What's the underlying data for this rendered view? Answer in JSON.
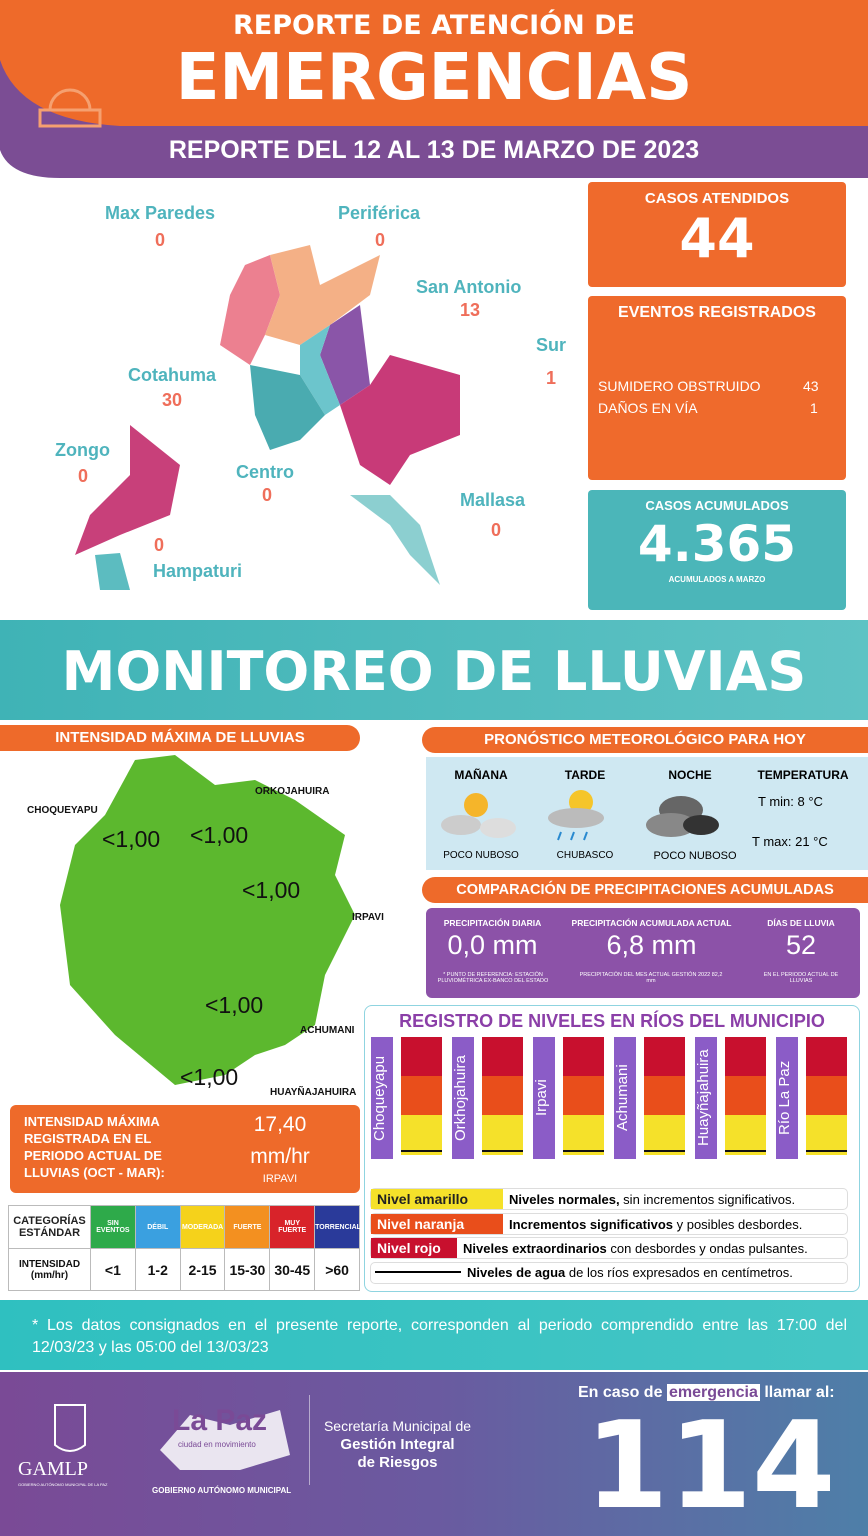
{
  "header": {
    "title_top": "REPORTE DE ATENCIÓN DE",
    "title_main": "EMERGENCIAS",
    "subtitle": "REPORTE DEL 12 AL 13 DE MARZO DE 2023"
  },
  "districts": [
    {
      "name": "Max Paredes",
      "value": "0"
    },
    {
      "name": "Periférica",
      "value": "0"
    },
    {
      "name": "San Antonio",
      "value": "13"
    },
    {
      "name": "Sur",
      "value": "1"
    },
    {
      "name": "Cotahuma",
      "value": "30"
    },
    {
      "name": "Zongo",
      "value": "0"
    },
    {
      "name": "Centro",
      "value": "0"
    },
    {
      "name": "Mallasa",
      "value": "0"
    },
    {
      "name": "Hampaturi",
      "value": "0"
    }
  ],
  "summary": {
    "casos": {
      "label": "CASOS ATENDIDOS",
      "value": "44"
    },
    "eventos": {
      "label": "EVENTOS REGISTRADOS",
      "items": [
        {
          "name": "SUMIDERO OBSTRUIDO",
          "value": "43"
        },
        {
          "name": "DAÑOS EN VÍA",
          "value": "1"
        }
      ]
    },
    "acumulados": {
      "label": "CASOS ACUMULADOS",
      "value": "4.365",
      "note": "ACUMULADOS  A MARZO"
    }
  },
  "monitoreo": {
    "title": "MONITOREO DE LLUVIAS"
  },
  "intensidad": {
    "title": "INTENSIDAD MÁXIMA  DE LLUVIAS",
    "stations": [
      {
        "name": "CHOQUEYAPU",
        "value": "<1,00"
      },
      {
        "name": "ORKOJAHUIRA",
        "value": "<1,00"
      },
      {
        "name": "IRPAVI",
        "value": "<1,00"
      },
      {
        "name": "ACHUMANI",
        "value": "<1,00"
      },
      {
        "name": "HUAYÑAJAHUIRA",
        "value": "<1,00"
      }
    ],
    "max": {
      "label": "INTENSIDAD MÁXIMA REGISTRADA EN EL PERIODO ACTUAL DE LLUVIAS (OCT - MAR):",
      "value": "17,40",
      "unit": "mm/hr",
      "station": "IRPAVI"
    }
  },
  "categorias": {
    "header": [
      "CATEGORÍAS ESTÁNDAR",
      "SIN EVENTOS",
      "DÉBIL",
      "MODERADA",
      "FUERTE",
      "MUY FUERTE",
      "TORRENCIAL"
    ],
    "row": [
      "INTENSIDAD (mm/hr)",
      "<1",
      "1-2",
      "2-15",
      "15-30",
      "30-45",
      ">60"
    ]
  },
  "pronostico": {
    "title": "PRONÓSTICO METEOROLÓGICO PARA HOY",
    "periods": [
      {
        "name": "MAÑANA",
        "desc": "POCO NUBOSO"
      },
      {
        "name": "TARDE",
        "desc": "CHUBASCO"
      },
      {
        "name": "NOCHE",
        "desc": "POCO NUBOSO"
      }
    ],
    "temperatura": {
      "label": "TEMPERATURA",
      "tmin": "T min:  8 °C",
      "tmax": "T max: 21 °C"
    }
  },
  "comparacion": {
    "title": "COMPARACIÓN DE PRECIPITACIONES ACUMULADAS",
    "items": [
      {
        "label": "PRECIPITACIÓN DIARIA",
        "value": "0,0 mm",
        "note": "* PUNTO DE REFERENCIA: ESTACIÓN PLUVIOMÉTRICA EX-BANCO DEL ESTADO"
      },
      {
        "label": "PRECIPITACIÓN ACUMULADA ACTUAL",
        "value": "6,8 mm",
        "note": "PRECIPITACIÓN DEL MES ACTUAL  GESTIÓN 2022 82,2 mm"
      },
      {
        "label": "DÍAS DE LLUVIA",
        "value": "52",
        "note": "EN EL PERIODO ACTUAL DE LLUVIAS"
      }
    ]
  },
  "rios": {
    "title": "REGISTRO DE NIVELES EN RÍOS DEL MUNICIPIO",
    "rivers": [
      "Choqueyapu",
      "Orkhojahuira",
      "Irpavi",
      "Achumani",
      "Huayñajahuira",
      "Río La Paz"
    ],
    "legend": [
      {
        "label": "Nivel amarillo",
        "bold": "Niveles normales,",
        "text": " sin incrementos significativos."
      },
      {
        "label": "Nivel naranja",
        "bold": "Incrementos significativos",
        "text": " y posibles desbordes."
      },
      {
        "label": "Nivel rojo",
        "bold": "Niveles extraordinarios",
        "text": " con desbordes y ondas pulsantes."
      },
      {
        "bold": "Niveles de agua",
        "text": " de los ríos expresados en centímetros."
      }
    ]
  },
  "footnote": "* Los datos consignados en el presente reporte, corresponden al periodo comprendido entre las 17:00 del 12/03/23 y las 05:00 del 13/03/23",
  "footer": {
    "gamlp": "GAMLP",
    "gamlp_sub": "GOBIERNO AUTÓNOMO MUNICIPAL DE LA PAZ",
    "lapaz": "La Paz",
    "lapaz_sub": "ciudad en movimiento",
    "gobierno": "GOBIERNO AUTÓNOMO MUNICIPAL",
    "secretaria": "Secretaría Municipal de",
    "gestion": "Gestión Integral",
    "riesgos": "de Riesgos",
    "emergency_pre": "En caso de",
    "emergency_word": "emergencia",
    "emergency_post": "llamar al:",
    "number": "114"
  }
}
